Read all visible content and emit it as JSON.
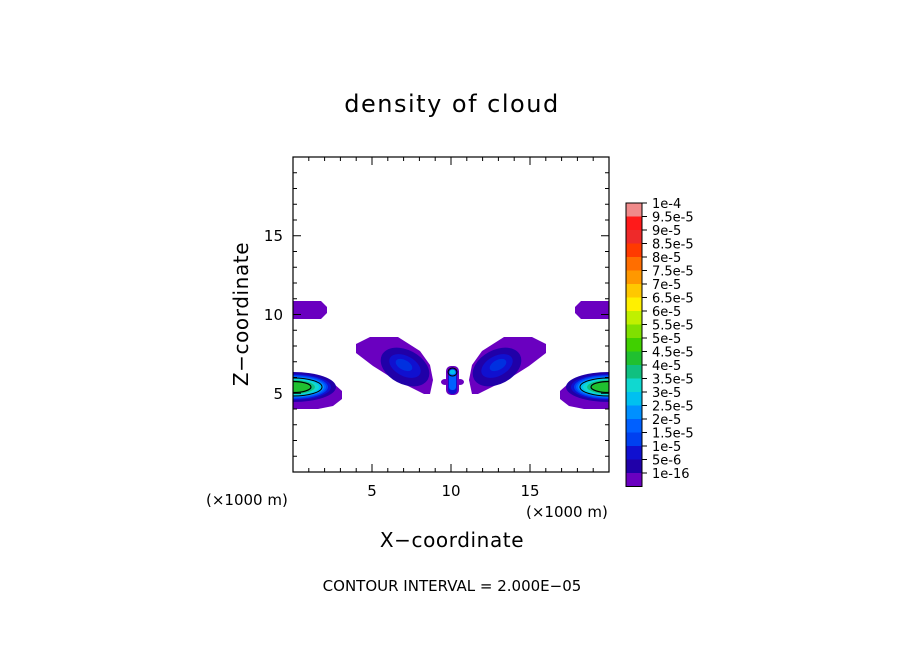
{
  "chart_data": {
    "type": "contour",
    "title": "density of cloud",
    "xlabel": "X−coordinate",
    "ylabel": "Z−coordinate",
    "x_unit": "(×1000 m)",
    "y_unit": "(×1000 m)",
    "xlim": [
      0,
      20
    ],
    "ylim": [
      0,
      20
    ],
    "xticks": [
      5,
      10,
      15
    ],
    "yticks": [
      5,
      10,
      15
    ],
    "grid": false,
    "footer": "CONTOUR INTERVAL = 2.000E−05",
    "legend_position": "right",
    "colorbar": {
      "labels": [
        "1e-4",
        "9.5e-5",
        "9e-5",
        "8.5e-5",
        "8e-5",
        "7.5e-5",
        "7e-5",
        "6.5e-5",
        "6e-5",
        "5.5e-5",
        "5e-5",
        "4.5e-5",
        "4e-5",
        "3.5e-5",
        "3e-5",
        "2.5e-5",
        "2e-5",
        "1.5e-5",
        "1e-5",
        "5e-6",
        "1e-16"
      ],
      "colors": [
        "#f08a8a",
        "#ff1a1a",
        "#ee2a2a",
        "#ff3a00",
        "#ff6e00",
        "#ff9800",
        "#ffc800",
        "#fff000",
        "#c0f000",
        "#80e000",
        "#40d000",
        "#20c030",
        "#10c080",
        "#10d8d0",
        "#00c0f0",
        "#0090ff",
        "#0060ff",
        "#0040f0",
        "#1010d0",
        "#2000a8",
        "#6a00c0"
      ]
    },
    "regions": [
      {
        "name": "left-lower-cloud",
        "x_range": [
          0,
          2.5
        ],
        "z_range": [
          4.2,
          6.6
        ],
        "core_x": 0,
        "core_z": 5.3,
        "max_level": "5e-5"
      },
      {
        "name": "right-lower-cloud",
        "x_range": [
          16.7,
          20
        ],
        "z_range": [
          4.2,
          6.6
        ],
        "core_x": 20,
        "core_z": 5.3,
        "max_level": "5e-5"
      },
      {
        "name": "left-upper-cloud",
        "x_range": [
          0,
          2.1
        ],
        "z_range": [
          9.8,
          10.8
        ],
        "max_level": "1e-16"
      },
      {
        "name": "right-upper-cloud",
        "x_range": [
          17.9,
          20
        ],
        "z_range": [
          9.8,
          10.8
        ],
        "max_level": "1e-16"
      },
      {
        "name": "central-left-arm",
        "x_range": [
          3.9,
          8.6
        ],
        "z_range": [
          4.9,
          8.3
        ],
        "core_x": 7.2,
        "core_z": 6.3,
        "max_level": "1e-5"
      },
      {
        "name": "central-right-arm",
        "x_range": [
          11.4,
          16.3
        ],
        "z_range": [
          4.9,
          8.3
        ],
        "core_x": 12.8,
        "core_z": 6.3,
        "max_level": "1e-5"
      },
      {
        "name": "central-column",
        "x_range": [
          9.6,
          10.4
        ],
        "z_range": [
          4.8,
          6.6
        ],
        "max_level": "2e-5"
      }
    ]
  }
}
